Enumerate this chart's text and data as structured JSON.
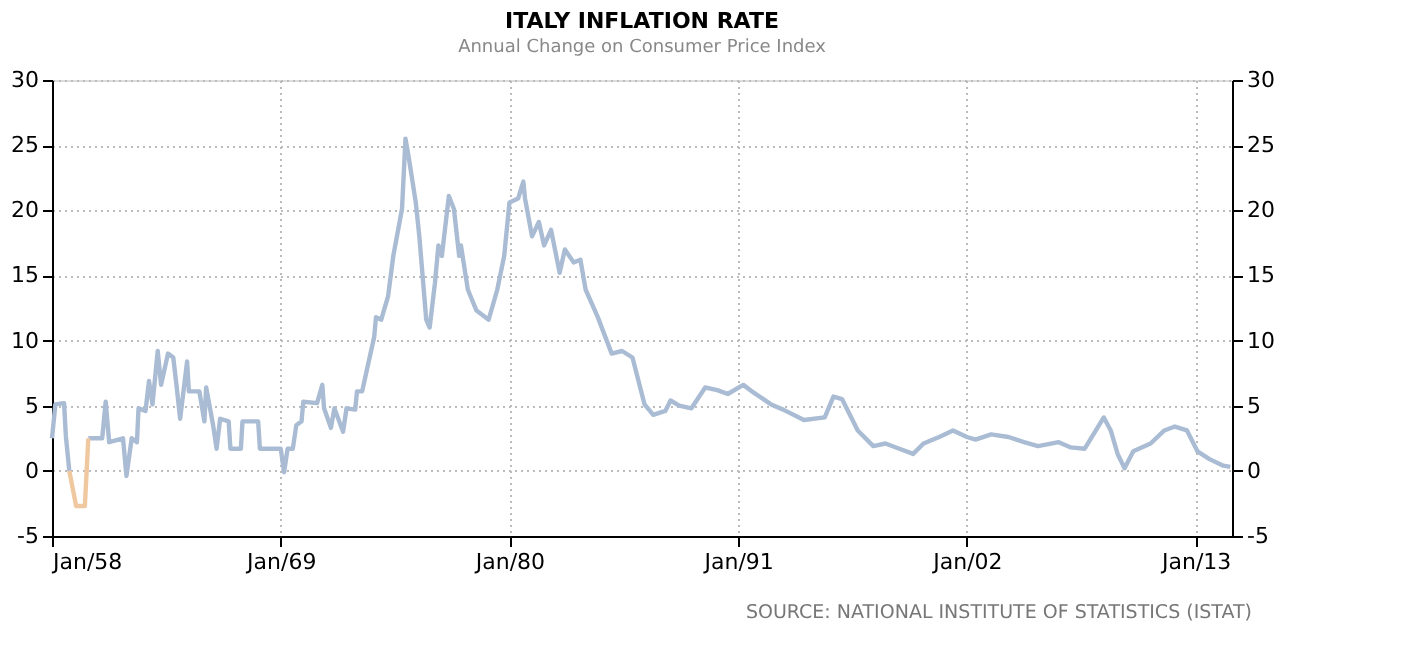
{
  "chart_data": {
    "type": "line",
    "title": "ITALY INFLATION RATE",
    "subtitle": "Annual Change on Consumer Price Index",
    "annotations": [
      "SOURCE: NATIONAL INSTITUTE OF STATISTICS (ISTAT)"
    ],
    "series": [
      {
        "color": "#a9bcd4",
        "x": [
          "1958-01",
          "1958-03",
          "1958-08",
          "1958-09",
          "1958-11"
        ],
        "values": [
          2.5,
          5.1,
          5.2,
          2.7,
          0
        ]
      },
      {
        "color": "#a9bcd4",
        "x": [
          "1959-10",
          "1960-06",
          "1960-08",
          "1960-10",
          "1961-06",
          "1961-08",
          "1961-11",
          "1962-02",
          "1962-03",
          "1962-07",
          "1962-09",
          "1962-11",
          "1963-02",
          "1963-04",
          "1963-08",
          "1963-11",
          "1964-01",
          "1964-03",
          "1964-07",
          "1964-08",
          "1965-02",
          "1965-05",
          "1965-06",
          "1965-10",
          "1965-12",
          "1966-02",
          "1966-07",
          "1966-08",
          "1967-02",
          "1967-03",
          "1967-12",
          "1968-01",
          "1969-01",
          "1969-03",
          "1969-05",
          "1969-08",
          "1969-10",
          "1970-01",
          "1970-02",
          "1970-10",
          "1971-01",
          "1971-02",
          "1971-06",
          "1971-08",
          "1972-01",
          "1972-03",
          "1972-08",
          "1972-09",
          "1972-12",
          "1973-03",
          "1973-07",
          "1973-08",
          "1973-11",
          "1974-03",
          "1974-06",
          "1974-11",
          "1975-01",
          "1975-03",
          "1975-07",
          "1975-09",
          "1976-01",
          "1976-03",
          "1976-06",
          "1976-08",
          "1976-10",
          "1977-02",
          "1977-05",
          "1977-08",
          "1977-09",
          "1978-01",
          "1978-06",
          "1979-01",
          "1979-06",
          "1979-10",
          "1980-01",
          "1980-06",
          "1980-09",
          "1980-10",
          "1981-02",
          "1981-06",
          "1981-09",
          "1982-01",
          "1982-06",
          "1982-09",
          "1983-02",
          "1983-06",
          "1983-09",
          "1984-04",
          "1984-12",
          "1985-06",
          "1985-12",
          "1986-07",
          "1986-12",
          "1987-07",
          "1987-10",
          "1988-03",
          "1988-10",
          "1989-06",
          "1990-01",
          "1990-07",
          "1991-04",
          "1991-10",
          "1992-08",
          "1993-03",
          "1994-03",
          "1995-03",
          "1995-08",
          "1996-01",
          "1996-10",
          "1997-07",
          "1998-02",
          "1998-10",
          "1999-06",
          "1999-12",
          "2000-09",
          "2001-05",
          "2002-01",
          "2002-06",
          "2003-03",
          "2004-01",
          "2004-10",
          "2005-06",
          "2006-06",
          "2007-01",
          "2007-09",
          "2008-02",
          "2008-08",
          "2008-12",
          "2009-04",
          "2009-08",
          "2010-01",
          "2010-11",
          "2011-07",
          "2012-01",
          "2012-08",
          "2013-02",
          "2013-09",
          "2014-05",
          "2014-09"
        ],
        "values": [
          2.5,
          2.5,
          5.3,
          2.2,
          2.5,
          -0.4,
          2.5,
          2.2,
          4.8,
          4.6,
          6.9,
          5.1,
          9.2,
          6.6,
          9.0,
          8.7,
          6.4,
          4.0,
          8.4,
          6.1,
          6.1,
          3.8,
          6.4,
          3.5,
          1.7,
          4.0,
          3.8,
          1.7,
          1.7,
          3.8,
          3.8,
          1.7,
          1.7,
          -0.1,
          1.7,
          1.7,
          3.5,
          3.8,
          5.3,
          5.2,
          6.6,
          4.8,
          3.3,
          4.8,
          3.0,
          4.8,
          4.7,
          6.1,
          6.1,
          7.9,
          10.3,
          11.8,
          11.6,
          13.4,
          16.5,
          20.1,
          25.5,
          24.0,
          20.6,
          18.0,
          11.6,
          11.0,
          14.4,
          17.3,
          16.5,
          21.1,
          20.1,
          16.5,
          17.3,
          13.9,
          12.3,
          11.6,
          13.9,
          16.5,
          20.6,
          20.9,
          22.2,
          20.9,
          18.0,
          19.1,
          17.3,
          18.5,
          15.2,
          17.0,
          16.0,
          16.2,
          13.9,
          11.8,
          9.0,
          9.2,
          8.7,
          5.1,
          4.3,
          4.6,
          5.4,
          5.0,
          4.8,
          6.4,
          6.2,
          5.9,
          6.6,
          6.0,
          5.1,
          4.7,
          3.9,
          4.1,
          5.7,
          5.5,
          3.1,
          1.9,
          2.1,
          1.7,
          1.3,
          2.1,
          2.6,
          3.1,
          2.6,
          2.4,
          2.8,
          2.6,
          2.2,
          1.9,
          2.2,
          1.8,
          1.7,
          2.8,
          4.1,
          3.1,
          1.3,
          0.2,
          1.5,
          2.1,
          3.1,
          3.4,
          3.1,
          1.5,
          0.9,
          0.4,
          0.3
        ]
      },
      {
        "color": "#f0c8a0",
        "x": [
          "1958-11",
          "1959-03",
          "1959-08",
          "1959-10"
        ],
        "values": [
          0,
          -2.7,
          -2.7,
          2.5
        ]
      }
    ],
    "xlim": [
      "1958-01",
      "2014-10"
    ],
    "xticks": [
      {
        "value": "1958-01",
        "label": "Jan/58"
      },
      {
        "value": "1969-01",
        "label": "Jan/69"
      },
      {
        "value": "1980-01",
        "label": "Jan/80"
      },
      {
        "value": "1991-01",
        "label": "Jan/91"
      },
      {
        "value": "2002-01",
        "label": "Jan/02"
      },
      {
        "value": "2013-01",
        "label": "Jan/13"
      }
    ],
    "ylim": [
      -5,
      30
    ],
    "yticks": [
      -5,
      0,
      5,
      10,
      15,
      20,
      25,
      30
    ],
    "y2lim": [
      -5,
      30
    ],
    "y2ticks": [
      -5,
      0,
      5,
      10,
      15,
      20,
      25,
      30
    ],
    "grid": true,
    "line_style": "solid",
    "marker": "none"
  }
}
